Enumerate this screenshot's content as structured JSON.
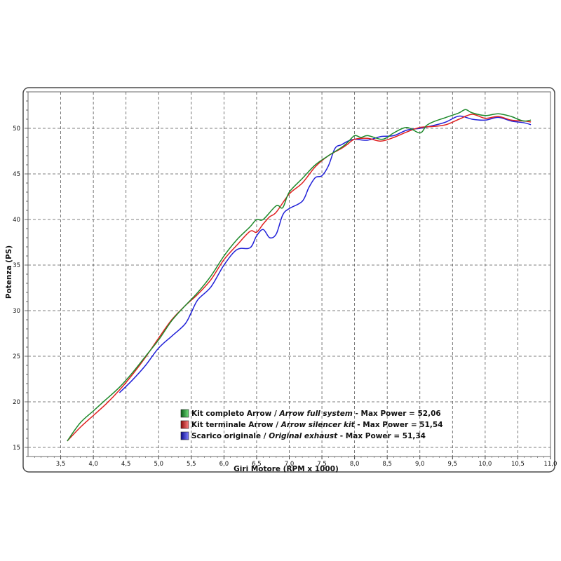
{
  "chart_data": {
    "type": "line",
    "xlabel": "Giri Motore (RPM x 1000)",
    "ylabel": "Potenza (PS)",
    "xlim": [
      3.0,
      11.0
    ],
    "ylim": [
      14,
      54
    ],
    "x_ticks": [
      "3,5",
      "4,0",
      "4,5",
      "5,0",
      "5,5",
      "6,0",
      "6,5",
      "7,0",
      "7,5",
      "8,0",
      "8,5",
      "9,0",
      "9,5",
      "10,0",
      "10,5",
      "11,0"
    ],
    "x_tick_values": [
      3.5,
      4.0,
      4.5,
      5.0,
      5.5,
      6.0,
      6.5,
      7.0,
      7.5,
      8.0,
      8.5,
      9.0,
      9.5,
      10.0,
      10.5,
      11.0
    ],
    "y_ticks": [
      "15",
      "20",
      "25",
      "30",
      "35",
      "40",
      "45",
      "50"
    ],
    "y_tick_values": [
      15,
      20,
      25,
      30,
      35,
      40,
      45,
      50
    ],
    "grid": true,
    "legend_position": "bottom-center",
    "series": [
      {
        "name": "Kit completo Arrow / Arrow full system - Max Power = 52,06",
        "legend_plain": "Kit completo Arrow / ",
        "legend_italic": "Arrow full system",
        "legend_tail": " - Max Power = 52,06",
        "color": "#1e8a2c",
        "x": [
          3.6,
          3.8,
          4.0,
          4.2,
          4.4,
          4.6,
          4.8,
          5.0,
          5.2,
          5.4,
          5.6,
          5.8,
          6.0,
          6.2,
          6.4,
          6.5,
          6.6,
          6.8,
          6.9,
          7.0,
          7.2,
          7.4,
          7.6,
          7.8,
          7.9,
          8.0,
          8.1,
          8.2,
          8.4,
          8.5,
          8.6,
          8.8,
          9.0,
          9.1,
          9.2,
          9.4,
          9.6,
          9.7,
          9.8,
          10.0,
          10.2,
          10.4,
          10.5,
          10.6,
          10.7
        ],
        "y": [
          15.7,
          17.7,
          19.0,
          20.3,
          21.6,
          23.2,
          25.0,
          26.8,
          28.9,
          30.5,
          32.0,
          33.8,
          36.0,
          37.8,
          39.2,
          40.0,
          40.0,
          41.5,
          41.3,
          43.0,
          44.5,
          46.0,
          47.0,
          47.9,
          48.5,
          49.2,
          49.0,
          49.2,
          48.8,
          49.0,
          49.5,
          50.1,
          49.5,
          50.3,
          50.7,
          51.2,
          51.7,
          52.06,
          51.7,
          51.4,
          51.6,
          51.3,
          51.0,
          50.8,
          50.9
        ]
      },
      {
        "name": "Kit terminale Arrow / Arrow silencer kit - Max Power = 51,54",
        "legend_plain": "Kit terminale Arrow / ",
        "legend_italic": "Arrow silencer kit",
        "legend_tail": " - Max Power = 51,54",
        "color": "#e02020",
        "x": [
          3.6,
          3.8,
          4.0,
          4.2,
          4.4,
          4.6,
          4.8,
          5.0,
          5.2,
          5.4,
          5.6,
          5.8,
          6.0,
          6.2,
          6.4,
          6.5,
          6.6,
          6.7,
          6.8,
          7.0,
          7.2,
          7.4,
          7.6,
          7.8,
          7.9,
          8.0,
          8.2,
          8.4,
          8.6,
          8.8,
          9.0,
          9.2,
          9.4,
          9.6,
          9.8,
          10.0,
          10.2,
          10.4,
          10.6,
          10.7
        ],
        "y": [
          15.7,
          17.2,
          18.5,
          19.8,
          21.3,
          23.0,
          24.9,
          27.0,
          29.0,
          30.5,
          31.8,
          33.4,
          35.6,
          37.2,
          38.7,
          38.6,
          39.5,
          40.3,
          40.8,
          42.8,
          44.0,
          45.8,
          47.0,
          47.8,
          48.3,
          48.8,
          48.9,
          48.6,
          49.0,
          49.6,
          50.1,
          50.2,
          50.4,
          51.0,
          51.54,
          51.1,
          51.3,
          50.9,
          50.8,
          50.7
        ]
      },
      {
        "name": "Scarico originale / Original exhaust - Max Power = 51,34",
        "legend_plain": "Scarico originale / ",
        "legend_italic": "Original exhaust",
        "legend_tail": " - Max Power = 51,34",
        "color": "#2020d8",
        "x": [
          4.4,
          4.6,
          4.8,
          5.0,
          5.2,
          5.4,
          5.5,
          5.6,
          5.8,
          6.0,
          6.2,
          6.4,
          6.5,
          6.6,
          6.7,
          6.8,
          6.9,
          7.0,
          7.2,
          7.3,
          7.4,
          7.5,
          7.6,
          7.7,
          7.8,
          7.9,
          8.0,
          8.2,
          8.4,
          8.6,
          8.8,
          9.0,
          9.2,
          9.4,
          9.6,
          9.8,
          10.0,
          10.2,
          10.4,
          10.6,
          10.7
        ],
        "y": [
          21.0,
          22.4,
          24.0,
          25.9,
          27.2,
          28.5,
          29.8,
          31.2,
          32.6,
          35.0,
          36.7,
          36.9,
          38.2,
          38.9,
          38.0,
          38.4,
          40.5,
          41.2,
          42.0,
          43.5,
          44.6,
          44.8,
          45.9,
          47.8,
          48.2,
          48.6,
          48.8,
          48.7,
          49.1,
          49.2,
          49.8,
          50.0,
          50.3,
          50.7,
          51.34,
          51.0,
          50.9,
          51.2,
          50.8,
          50.6,
          50.4
        ]
      }
    ]
  }
}
